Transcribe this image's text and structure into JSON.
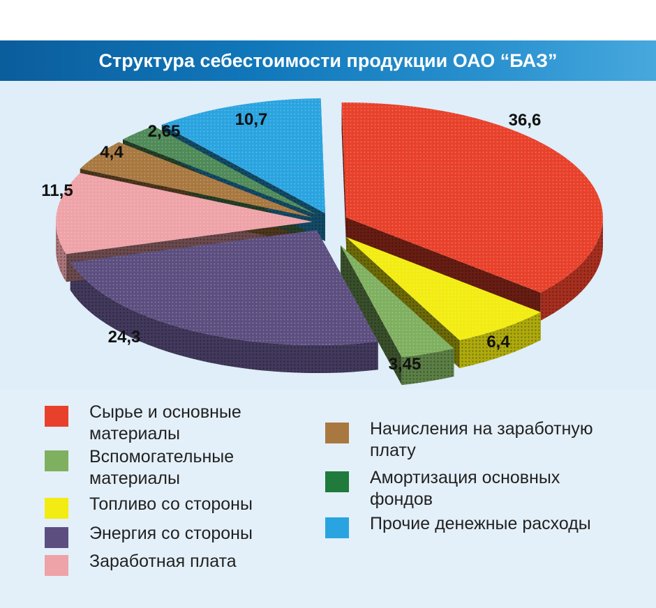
{
  "chart_data": {
    "type": "pie",
    "title": "Структура себестоимости продукции ОАО “БАЗ”",
    "categories": [
      "Сырье и основные\nматериалы",
      "Топливо со стороны",
      "Вспомогательные\nматериалы",
      "Энергия со стороны",
      "Заработная плата",
      "Начисления на заработную\nплату",
      "Амортизация основных\nфондов",
      "Прочие денежные расходы"
    ],
    "values": [
      36.6,
      6.4,
      3.45,
      24.3,
      11.5,
      4.4,
      2.65,
      10.7
    ],
    "value_labels": [
      "36,6",
      "6,4",
      "3,45",
      "24,3",
      "11,5",
      "4,4",
      "2,65",
      "10,7"
    ],
    "colors": [
      "#e8412b",
      "#f2ec12",
      "#7fb060",
      "#5c4f80",
      "#eea3a8",
      "#a87840",
      "#4f8a58",
      "#2aa4e0"
    ],
    "legend_position": "bottom",
    "exploded": true,
    "three_d": true
  },
  "legend": {
    "left_column": [
      {
        "label": "Сырье и основные\nматериалы",
        "color": "#e8412b"
      },
      {
        "label": "Вспомогательные\nматериалы",
        "color": "#7fb060"
      },
      {
        "label": "Топливо со стороны",
        "color": "#f2ec12"
      },
      {
        "label": "Энергия со стороны",
        "color": "#5c4f80"
      },
      {
        "label": "Заработная плата",
        "color": "#eea3a8"
      }
    ],
    "right_column": [
      {
        "label": "Начисления на заработную\nплату",
        "color": "#a87840"
      },
      {
        "label": "Амортизация основных\nфондов",
        "color": "#1f7a3c"
      },
      {
        "label": "Прочие денежные расходы",
        "color": "#2aa4e0"
      }
    ]
  }
}
